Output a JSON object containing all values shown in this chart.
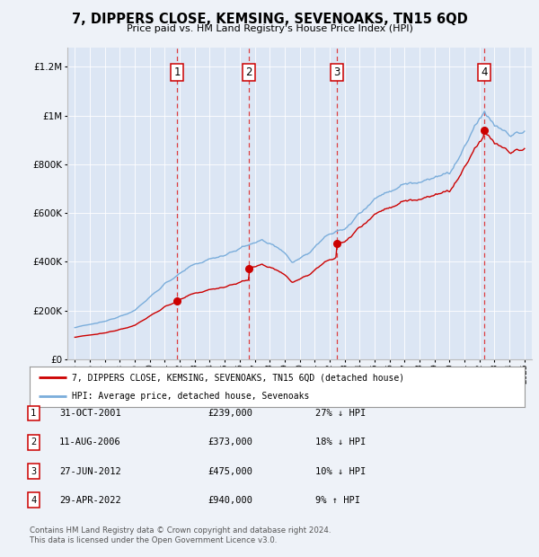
{
  "title": "7, DIPPERS CLOSE, KEMSING, SEVENOAKS, TN15 6QD",
  "subtitle": "Price paid vs. HM Land Registry's House Price Index (HPI)",
  "footer1": "Contains HM Land Registry data © Crown copyright and database right 2024.",
  "footer2": "This data is licensed under the Open Government Licence v3.0.",
  "legend_label_red": "7, DIPPERS CLOSE, KEMSING, SEVENOAKS, TN15 6QD (detached house)",
  "legend_label_blue": "HPI: Average price, detached house, Sevenoaks",
  "transactions": [
    {
      "num": "1",
      "date": "31-OCT-2001",
      "price": "£239,000",
      "pct": "27% ↓ HPI",
      "year_x": 2001.83,
      "sale_price": 239000
    },
    {
      "num": "2",
      "date": "11-AUG-2006",
      "price": "£373,000",
      "pct": "18% ↓ HPI",
      "year_x": 2006.61,
      "sale_price": 373000
    },
    {
      "num": "3",
      "date": "27-JUN-2012",
      "price": "£475,000",
      "pct": "10% ↓ HPI",
      "year_x": 2012.49,
      "sale_price": 475000
    },
    {
      "num": "4",
      "date": "29-APR-2022",
      "price": "£940,000",
      "pct": "9% ↑ HPI",
      "year_x": 2022.33,
      "sale_price": 940000
    }
  ],
  "ylim": [
    0,
    1280000
  ],
  "xlim": [
    1994.5,
    2025.5
  ],
  "background_color": "#eef2f8",
  "plot_bg": "#dce6f4",
  "grid_color": "#ffffff",
  "red_color": "#cc0000",
  "blue_color": "#7aaddb",
  "dashed_color": "#dd2222"
}
